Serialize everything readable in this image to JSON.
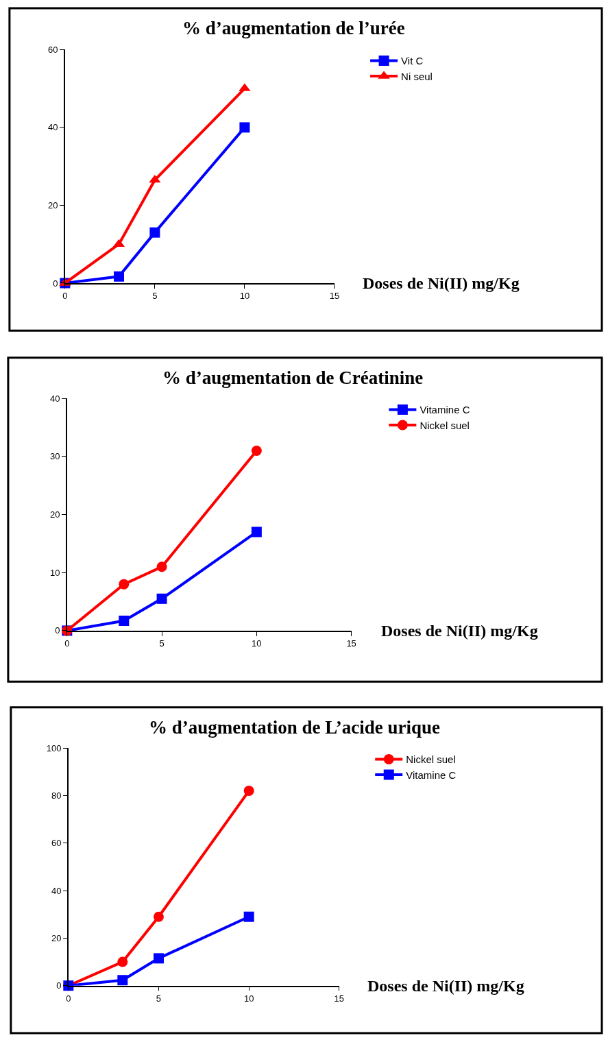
{
  "chart_data": [
    {
      "type": "line",
      "title": "% d’augmentation de l’urée",
      "xlabel": "Doses de Ni(II) mg/Kg",
      "x": [
        0,
        3,
        5,
        10
      ],
      "xlim": [
        0,
        15
      ],
      "xticks": [
        0,
        5,
        10,
        15
      ],
      "ylim": [
        0,
        60
      ],
      "yticks": [
        0,
        20,
        40,
        60
      ],
      "legend": "top right",
      "series": [
        {
          "name": "Vit C",
          "color": "#0000ff",
          "marker": "square",
          "values": [
            0,
            1.7,
            13,
            40
          ]
        },
        {
          "name": "Ni seul",
          "color": "#ff0000",
          "marker": "triangle",
          "values": [
            0,
            10,
            26.5,
            50
          ]
        }
      ]
    },
    {
      "type": "line",
      "title": "% d’augmentation de Créatinine",
      "xlabel": "Doses de Ni(II) mg/Kg",
      "x": [
        0,
        3,
        5,
        10
      ],
      "xlim": [
        0,
        15
      ],
      "xticks": [
        0,
        5,
        10,
        15
      ],
      "ylim": [
        0,
        40
      ],
      "yticks": [
        0,
        10,
        20,
        30,
        40
      ],
      "legend": "top right",
      "series": [
        {
          "name": "Vitamine C",
          "color": "#0000ff",
          "marker": "square",
          "values": [
            0,
            1.7,
            5.5,
            17
          ]
        },
        {
          "name": "Nickel suel",
          "color": "#ff0000",
          "marker": "circle",
          "values": [
            0,
            8,
            11,
            31
          ]
        }
      ]
    },
    {
      "type": "line",
      "title": "% d’augmentation de L’acide urique",
      "xlabel": "Doses de Ni(II) mg/Kg",
      "x": [
        0,
        3,
        5,
        10
      ],
      "xlim": [
        0,
        15
      ],
      "xticks": [
        0,
        5,
        10,
        15
      ],
      "ylim": [
        0,
        100
      ],
      "yticks": [
        0,
        20,
        40,
        60,
        80,
        100
      ],
      "legend": "top right",
      "series": [
        {
          "name": "Nickel suel",
          "color": "#ff0000",
          "marker": "circle",
          "values": [
            0,
            10,
            29,
            82
          ]
        },
        {
          "name": "Vitamine C",
          "color": "#0000ff",
          "marker": "square",
          "values": [
            0,
            2.3,
            11.5,
            29
          ]
        }
      ]
    }
  ]
}
